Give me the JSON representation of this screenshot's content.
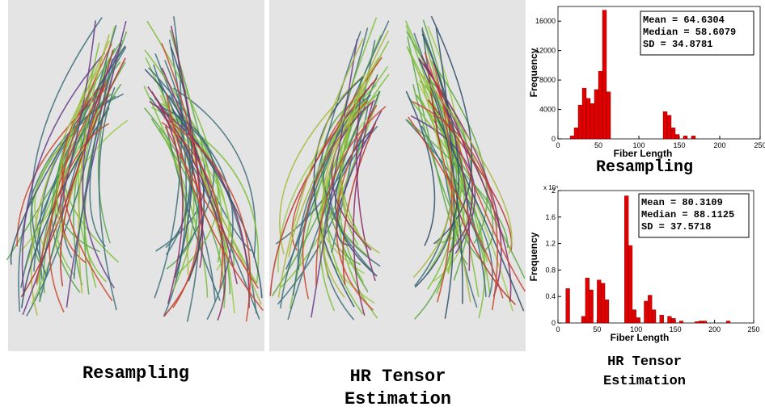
{
  "captions": {
    "left": "Resampling",
    "middle": [
      "HR Tensor",
      "Estimation"
    ]
  },
  "chart_data": [
    {
      "type": "histogram",
      "caption": "Resampling",
      "xlabel": "Fiber Length",
      "ylabel": "Frequency",
      "color": "#e00000",
      "stats": [
        "Mean = 64.6304",
        "Median = 58.6079",
        "SD = 34.8781"
      ],
      "bins": [
        15,
        20,
        25,
        30,
        35,
        40,
        45,
        50,
        55,
        60,
        65,
        70,
        75,
        80,
        85,
        90,
        95,
        100,
        105,
        110,
        115,
        120,
        125,
        130,
        135,
        140,
        145,
        150,
        155,
        160,
        165,
        170,
        175
      ],
      "values": [
        400,
        1500,
        4600,
        6900,
        5500,
        4800,
        6700,
        9200,
        17500,
        6400,
        0,
        0,
        0,
        0,
        0,
        0,
        0,
        0,
        0,
        0,
        0,
        0,
        0,
        3700,
        3200,
        1500,
        600,
        0,
        400,
        0,
        400,
        0
      ],
      "xlim": [
        0,
        250
      ],
      "xticks": [
        0,
        50,
        100,
        150,
        200,
        250
      ],
      "ylim": [
        0,
        18000
      ],
      "yticks": [
        0,
        4000,
        8000,
        12000,
        16000
      ]
    },
    {
      "type": "histogram",
      "caption": [
        "HR Tensor",
        "Estimation"
      ],
      "xlabel": "Fiber Length",
      "ylabel": "Frequency",
      "y_scale": "x 10⁴",
      "color": "#e00000",
      "stats": [
        "Mean = 80.3109",
        "Median = 88.1125",
        "SD = 37.5718"
      ],
      "bins": [
        10,
        15,
        20,
        25,
        30,
        35,
        40,
        45,
        50,
        55,
        60,
        65,
        70,
        75,
        80,
        85,
        90,
        95,
        100,
        105,
        110,
        115,
        120,
        125,
        130,
        135,
        140,
        145,
        150,
        155,
        160,
        165,
        170,
        175,
        180,
        185,
        190,
        195,
        200,
        205,
        210,
        215,
        220,
        225
      ],
      "values": [
        0.52,
        0,
        0,
        0,
        0.1,
        0.68,
        0.5,
        0,
        0.65,
        0.6,
        0.35,
        0,
        0,
        0,
        0,
        1.92,
        1.17,
        0.2,
        0.08,
        0,
        0.33,
        0.42,
        0.2,
        0,
        0.12,
        0,
        0.1,
        0.07,
        0,
        0.03,
        0,
        0,
        0,
        0.02,
        0.03,
        0.03,
        0,
        0,
        0,
        0,
        0,
        0.03,
        0
      ],
      "xlim": [
        0,
        250
      ],
      "xticks": [
        0,
        50,
        100,
        150,
        200,
        250
      ],
      "ylim": [
        0,
        2
      ],
      "yticks": [
        0,
        0.4,
        0.8,
        1.2,
        1.6,
        2
      ]
    }
  ]
}
